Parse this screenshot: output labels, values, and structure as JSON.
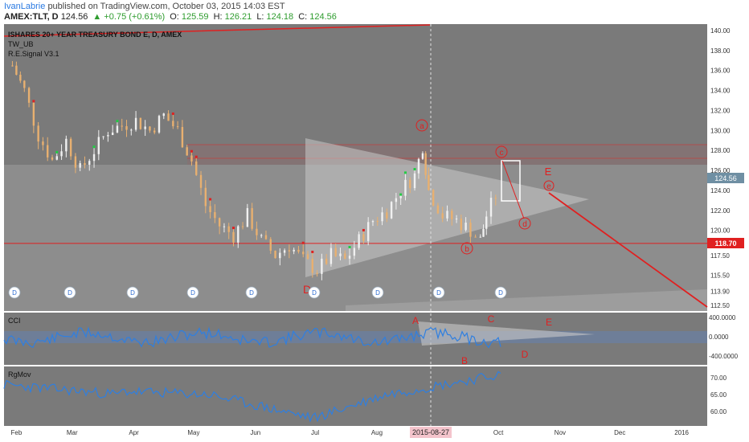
{
  "header": {
    "author": "IvanLabrie",
    "published": "published on TradingView.com, October 03, 2015 14:03 EST",
    "symbol": "AMEX:TLT, D",
    "last": "124.56",
    "change": "▲ +0.75 (+0.61%)",
    "o_label": "O:",
    "o_value": "125.59",
    "h_label": "H:",
    "h_value": "126.21",
    "l_label": "L:",
    "l_value": "124.18",
    "c_label": "C:",
    "c_value": "124.56"
  },
  "price_pane": {
    "title": "ISHARES 20+ YEAR TREASURY BOND E, D, AMEX",
    "indicator1": "TW_UB",
    "indicator2": "R.E.Signal V3.1",
    "current_price": "124.56",
    "level_price": "118.70",
    "wave_labels": [
      "a",
      "b",
      "c",
      "d",
      "e"
    ],
    "big_labels": [
      "D",
      "E"
    ],
    "dividend_marker": "D"
  },
  "cci_pane": {
    "title": "CCI",
    "labels": [
      "A",
      "B",
      "C",
      "D",
      "E"
    ]
  },
  "rgmov_pane": {
    "title": "RgMov"
  },
  "crosshair_date": "2015-08-27",
  "colors": {
    "background": "#ffffff",
    "pane_bg": "#7a7a7a",
    "line_blue": "#2f7fe0",
    "annotation_red": "#e02020",
    "axis_highlight": "#e02020",
    "current_price_bg": "#6f8fa3"
  },
  "chart_data": [
    {
      "type": "candlestick",
      "title": "ISHARES 20+ YEAR TREASURY BOND E, D, AMEX",
      "y_ticks": [
        "140.00",
        "138.00",
        "136.00",
        "134.00",
        "132.00",
        "130.00",
        "128.00",
        "126.00",
        "124.00",
        "122.00",
        "120.00",
        "117.50",
        "115.50",
        "113.90",
        "112.50"
      ],
      "x_ticks": [
        "Feb",
        "Mar",
        "Apr",
        "May",
        "Jun",
        "Jul",
        "Aug",
        "Oct",
        "Nov",
        "Dec",
        "2016"
      ],
      "close_series": [
        {
          "x": "2015-01-30",
          "y": 136.5
        },
        {
          "x": "2015-02-05",
          "y": 134.0
        },
        {
          "x": "2015-02-12",
          "y": 129.5
        },
        {
          "x": "2015-02-19",
          "y": 127.0
        },
        {
          "x": "2015-02-26",
          "y": 129.0
        },
        {
          "x": "2015-03-05",
          "y": 126.0
        },
        {
          "x": "2015-03-12",
          "y": 128.0
        },
        {
          "x": "2015-03-19",
          "y": 130.0
        },
        {
          "x": "2015-03-26",
          "y": 130.5
        },
        {
          "x": "2015-04-02",
          "y": 131.0
        },
        {
          "x": "2015-04-09",
          "y": 130.0
        },
        {
          "x": "2015-04-16",
          "y": 131.5
        },
        {
          "x": "2015-04-23",
          "y": 130.0
        },
        {
          "x": "2015-04-30",
          "y": 127.0
        },
        {
          "x": "2015-05-07",
          "y": 122.5
        },
        {
          "x": "2015-05-14",
          "y": 120.5
        },
        {
          "x": "2015-05-21",
          "y": 119.5
        },
        {
          "x": "2015-05-28",
          "y": 121.5
        },
        {
          "x": "2015-06-04",
          "y": 119.0
        },
        {
          "x": "2015-06-11",
          "y": 117.5
        },
        {
          "x": "2015-06-18",
          "y": 118.5
        },
        {
          "x": "2015-06-25",
          "y": 117.0
        },
        {
          "x": "2015-07-02",
          "y": 116.0
        },
        {
          "x": "2015-07-09",
          "y": 117.5
        },
        {
          "x": "2015-07-16",
          "y": 117.0
        },
        {
          "x": "2015-07-23",
          "y": 119.0
        },
        {
          "x": "2015-07-30",
          "y": 121.0
        },
        {
          "x": "2015-08-06",
          "y": 122.0
        },
        {
          "x": "2015-08-13",
          "y": 124.0
        },
        {
          "x": "2015-08-20",
          "y": 125.5
        },
        {
          "x": "2015-08-24",
          "y": 128.5
        },
        {
          "x": "2015-08-27",
          "y": 124.0
        },
        {
          "x": "2015-09-03",
          "y": 121.5
        },
        {
          "x": "2015-09-10",
          "y": 121.0
        },
        {
          "x": "2015-09-17",
          "y": 120.0
        },
        {
          "x": "2015-09-22",
          "y": 119.0
        },
        {
          "x": "2015-09-25",
          "y": 121.5
        },
        {
          "x": "2015-10-02",
          "y": 124.56
        }
      ],
      "level": 118.7,
      "current": 124.56
    },
    {
      "type": "line",
      "title": "CCI",
      "y_ticks": [
        "400.0000",
        "0.0000",
        "-400.0000"
      ],
      "ylim": [
        -520,
        500
      ]
    },
    {
      "type": "line",
      "title": "RgMov",
      "y_ticks": [
        "70.00",
        "65.00",
        "60.00"
      ],
      "ylim": [
        56.5,
        73
      ]
    }
  ]
}
